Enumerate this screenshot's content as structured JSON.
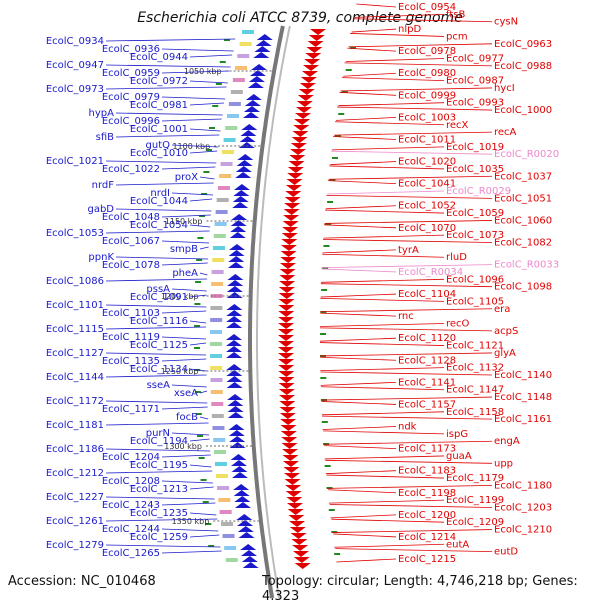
{
  "title": "Escherichia coli ATCC 8739, complete genome",
  "footer": {
    "accession": "Accession: NC_010468",
    "topology": "Topology: circular; Length: 4,746,218 bp; Genes: 4,323"
  },
  "colors": {
    "left_strand": "#1a1acc",
    "right_strand": "#e00000",
    "rna": "#ee88cc",
    "backbone": "#777777",
    "tick": "#228822"
  },
  "kbp_marks": [
    "1050 kbp",
    "1100 kbp",
    "1150 kbp",
    "1200 kbp",
    "1250 kbp",
    "1300 kbp",
    "1350 kbp"
  ],
  "left_labels": [
    "EcolC_0934",
    "EcolC_0936",
    "EcolC_0944",
    "EcolC_0947",
    "EcolC_0959",
    "EcolC_0972",
    "EcolC_0973",
    "EcolC_0979",
    "EcolC_0981",
    "hypA",
    "EcolC_0996",
    "EcolC_1001",
    "sfiB",
    "gutQ",
    "EcolC_1010",
    "EcolC_1021",
    "EcolC_1022",
    "proX",
    "nrdF",
    "nrdI",
    "EcolC_1044",
    "gabD",
    "EcolC_1048",
    "EcolC_1054",
    "EcolC_1053",
    "EcolC_1067",
    "smpB",
    "ppnK",
    "EcolC_1078",
    "pheA",
    "EcolC_1086",
    "pssA",
    "EcolC_1091",
    "EcolC_1101",
    "EcolC_1103",
    "EcolC_1116",
    "EcolC_1115",
    "EcolC_1119",
    "EcolC_1125",
    "EcolC_1127",
    "EcolC_1135",
    "EcolC_1134",
    "EcolC_1144",
    "sseA",
    "xseA",
    "EcolC_1172",
    "EcolC_1171",
    "focB",
    "EcolC_1181",
    "purN",
    "EcolC_1194",
    "EcolC_1186",
    "EcolC_1204",
    "EcolC_1195",
    "EcolC_1212",
    "EcolC_1208",
    "EcolC_1213",
    "EcolC_1227",
    "EcolC_1243",
    "EcolC_1235",
    "EcolC_1261",
    "EcolC_1244",
    "EcolC_1259",
    "EcolC_1279",
    "EcolC_1265"
  ],
  "right_labels": [
    "EcolC_0954",
    "ftsB",
    "cysN",
    "nlpD",
    "pcm",
    "EcolC_0963",
    "EcolC_0978",
    "EcolC_0977",
    "EcolC_0988",
    "EcolC_0980",
    "EcolC_0987",
    "hycI",
    "EcolC_0999",
    "EcolC_0993",
    "EcolC_1000",
    "EcolC_1003",
    "recX",
    "recA",
    "EcolC_1011",
    "EcolC_1019",
    "EcolC_R0020",
    "EcolC_1020",
    "EcolC_1035",
    "EcolC_1037",
    "EcolC_1041",
    "EcolC_R0029",
    "EcolC_1051",
    "EcolC_1052",
    "EcolC_1059",
    "EcolC_1060",
    "EcolC_1070",
    "EcolC_1073",
    "EcolC_1082",
    "tyrA",
    "rluD",
    "EcolC_R0033",
    "EcolC_R0034",
    "EcolC_1096",
    "EcolC_1098",
    "EcolC_1104",
    "EcolC_1105",
    "era",
    "rnc",
    "recO",
    "acpS",
    "EcolC_1120",
    "EcolC_1121",
    "glyA",
    "EcolC_1128",
    "EcolC_1132",
    "EcolC_1140",
    "EcolC_1141",
    "EcolC_1147",
    "EcolC_1148",
    "EcolC_1157",
    "EcolC_1158",
    "EcolC_1161",
    "ndk",
    "ispG",
    "engA",
    "EcolC_1173",
    "guaA",
    "upp",
    "EcolC_1183",
    "EcolC_1179",
    "EcolC_1180",
    "EcolC_1198",
    "EcolC_1199",
    "EcolC_1203",
    "EcolC_1200",
    "EcolC_1209",
    "EcolC_1210",
    "EcolC_1214",
    "eutA",
    "eutD",
    "EcolC_1215"
  ]
}
